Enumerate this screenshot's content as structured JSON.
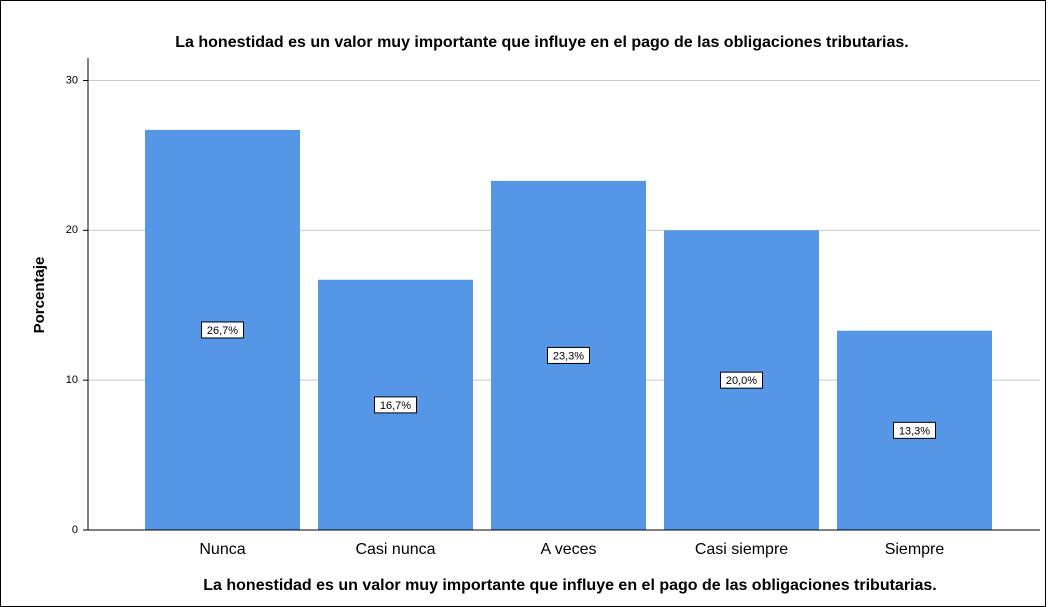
{
  "chart_data": {
    "type": "bar",
    "title": "La honestidad es un valor muy importante que influye en el pago de las obligaciones tributarias.",
    "x_label": "La honestidad es un valor muy importante que influye en el pago de las obligaciones tributarias.",
    "y_label": "Porcentaje",
    "categories": [
      "Nunca",
      "Casi nunca",
      "A veces",
      "Casi siempre",
      "Siempre"
    ],
    "values": [
      26.7,
      16.7,
      23.3,
      20.0,
      13.3
    ],
    "value_labels": [
      "26,7%",
      "16,7%",
      "23,3%",
      "20,0%",
      "13,3%"
    ],
    "color": "#5596e6",
    "ylim": [
      0,
      31.5
    ],
    "yticks": [
      0,
      10,
      20,
      30
    ],
    "grid": true
  }
}
